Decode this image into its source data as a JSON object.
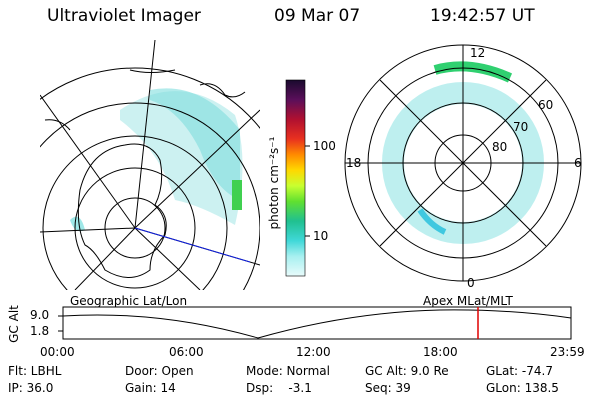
{
  "header": {
    "title": "Ultraviolet Imager",
    "date": "09 Mar 07",
    "time": "19:42:57 UT"
  },
  "colorbar": {
    "unit_label": "photon cm⁻²s⁻¹",
    "ticks": [
      "100",
      "10"
    ],
    "colors": [
      "#1a0a2e",
      "#4a0f5a",
      "#7a1060",
      "#b01030",
      "#e02020",
      "#ff6a00",
      "#ffb000",
      "#ffe000",
      "#c8ff30",
      "#70e030",
      "#20c060",
      "#20d0c0",
      "#60e0e0",
      "#a8f0f0",
      "#d8f8f8"
    ]
  },
  "left_map": {
    "label": "Geographic Lat/Lon"
  },
  "right_map": {
    "label": "Apex  MLat/MLT",
    "mlt_labels": {
      "top": "12",
      "left": "18",
      "right": "6",
      "bottom": "0"
    },
    "lat_labels": [
      "60",
      "70",
      "80"
    ]
  },
  "timeline": {
    "y_axis_label": "GC Alt",
    "y_ticks": [
      "9.0",
      "1.8"
    ],
    "x_ticks": [
      "00:00",
      "06:00",
      "12:00",
      "18:00",
      "23:59"
    ],
    "marker_color": "#e00000"
  },
  "info": {
    "flt": "Flt: LBHL",
    "ip": "IP: 36.0",
    "door": "Door: Open",
    "gain": "Gain: 14",
    "mode": "Mode: Normal",
    "dsp": "Dsp:    -3.1",
    "gcalt": "GC Alt: 9.0 Re",
    "seq": "Seq: 39",
    "glat": "GLat: -74.7",
    "glon": "GLon: 138.5"
  }
}
